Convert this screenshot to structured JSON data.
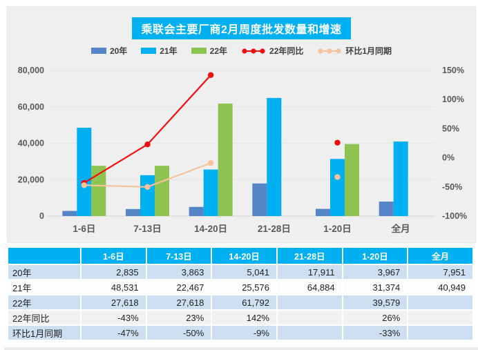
{
  "title": "乘联会主要厂商2月周度批发数量和增速",
  "colors": {
    "bar_20": "#5585c6",
    "bar_21": "#00b0f0",
    "bar_22": "#8ec351",
    "line_yoy": "#f20d0d",
    "line_mom": "#f6c39a",
    "header_cyan": "#00b0f0",
    "panel_bg": "#efefef",
    "row_blue": "#cfdff2",
    "row_gray": "#f2f2f2"
  },
  "legend": [
    {
      "label": "20年",
      "type": "bar",
      "color_key": "bar_20"
    },
    {
      "label": "21年",
      "type": "bar",
      "color_key": "bar_21"
    },
    {
      "label": "22年",
      "type": "bar",
      "color_key": "bar_22"
    },
    {
      "label": "22年同比",
      "type": "line",
      "color_key": "line_yoy"
    },
    {
      "label": "环比1月同期",
      "type": "line",
      "color_key": "line_mom"
    }
  ],
  "chart_data": {
    "type": "bar+line",
    "title": "乘联会主要厂商2月周度批发数量和增速",
    "categories": [
      "1-6日",
      "7-13日",
      "14-20日",
      "21-28日",
      "1-20日",
      "全月"
    ],
    "bar_series": [
      {
        "name": "20年",
        "values": [
          2835,
          3863,
          5041,
          17911,
          3967,
          7951
        ]
      },
      {
        "name": "21年",
        "values": [
          48531,
          22467,
          25576,
          64884,
          31374,
          40949
        ]
      },
      {
        "name": "22年",
        "values": [
          27618,
          27618,
          61792,
          null,
          39579,
          null
        ]
      }
    ],
    "line_series": [
      {
        "name": "22年同比",
        "values_pct": [
          -43,
          23,
          142,
          null,
          26,
          null
        ]
      },
      {
        "name": "环比1月同期",
        "values_pct": [
          -47,
          -50,
          -9,
          null,
          -33,
          null
        ]
      }
    ],
    "left_axis": {
      "min": 0,
      "max": 80000,
      "ticks": [
        "80,000",
        "60,000",
        "40,000",
        "20,000",
        "0"
      ]
    },
    "right_axis": {
      "min": -100,
      "max": 150,
      "ticks": [
        "150%",
        "100%",
        "50%",
        "0%",
        "-50%",
        "-100%"
      ]
    },
    "legend_position": "top",
    "grid": true
  },
  "table": {
    "headers": [
      "",
      "1-6日",
      "7-13日",
      "14-20日",
      "21-28日",
      "1-20日",
      "全月"
    ],
    "rows": [
      {
        "label": "20年",
        "cells": [
          "2,835",
          "3,863",
          "5,041",
          "17,911",
          "3,967",
          "7,951"
        ]
      },
      {
        "label": "21年",
        "cells": [
          "48,531",
          "22,467",
          "25,576",
          "64,884",
          "31,374",
          "40,949"
        ]
      },
      {
        "label": "22年",
        "cells": [
          "27,618",
          "27,618",
          "61,792",
          "",
          "39,579",
          ""
        ]
      },
      {
        "label": "22年同比",
        "cells": [
          "-43%",
          "23%",
          "142%",
          "",
          "26%",
          ""
        ]
      },
      {
        "label": "环比1月同期",
        "cells": [
          "-47%",
          "-50%",
          "-9%",
          "",
          "-33%",
          ""
        ]
      }
    ]
  }
}
